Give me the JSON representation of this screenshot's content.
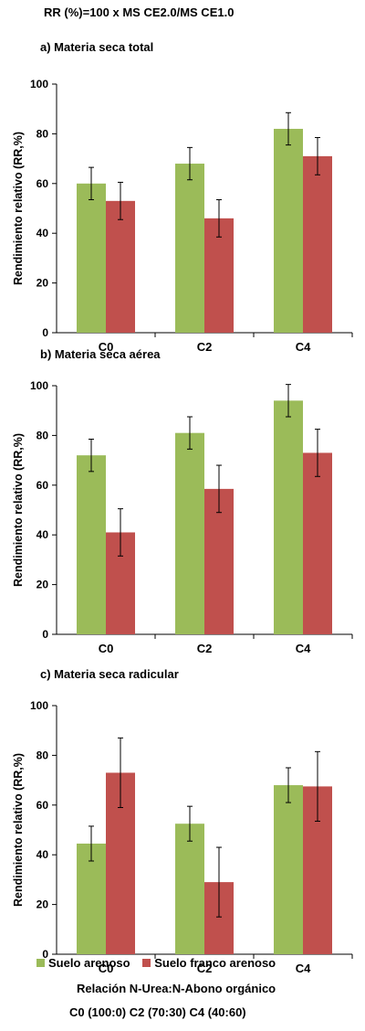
{
  "formula": "RR (%)=100 x MS CE2.0/MS CE1.0",
  "colors": {
    "series1": "#9BBB59",
    "series2": "#C0504D"
  },
  "legend": [
    {
      "label": "Suelo arenoso",
      "color": "#9BBB59"
    },
    {
      "label": "Suelo franco arenoso",
      "color": "#C0504D"
    }
  ],
  "note_line1": "Relación N-Urea:N-Abono orgánico",
  "note_line2": "C0 (100:0) C2 (70:30) C4 (40:60)",
  "chart_data": [
    {
      "type": "bar",
      "title": "a) Materia seca total",
      "ylabel": "Rendimiento relativo (RR,%)",
      "ylim": [
        0,
        100
      ],
      "yticks": [
        0,
        20,
        40,
        60,
        80,
        100
      ],
      "categories": [
        "C0",
        "C2",
        "C4"
      ],
      "series": [
        {
          "name": "Suelo arenoso",
          "values": [
            60,
            68,
            82
          ],
          "errors": [
            6.5,
            6.5,
            6.5
          ]
        },
        {
          "name": "Suelo franco arenoso",
          "values": [
            53,
            46,
            71
          ],
          "errors": [
            7.5,
            7.5,
            7.5
          ]
        }
      ]
    },
    {
      "type": "bar",
      "title": "b) Materia seca aérea",
      "ylabel": "Rendimiento relativo (RR,%)",
      "ylim": [
        0,
        100
      ],
      "yticks": [
        0,
        20,
        40,
        60,
        80,
        100
      ],
      "categories": [
        "C0",
        "C2",
        "C4"
      ],
      "series": [
        {
          "name": "Suelo arenoso",
          "values": [
            72,
            81,
            94
          ],
          "errors": [
            6.5,
            6.5,
            6.5
          ]
        },
        {
          "name": "Suelo franco arenoso",
          "values": [
            41,
            58.5,
            73
          ],
          "errors": [
            9.5,
            9.5,
            9.5
          ]
        }
      ]
    },
    {
      "type": "bar",
      "title": "c) Materia seca radicular",
      "ylabel": "Rendimiento relativo (RR,%)",
      "ylim": [
        0,
        100
      ],
      "yticks": [
        0,
        20,
        40,
        60,
        80,
        100
      ],
      "categories": [
        "C0",
        "C2",
        "C4"
      ],
      "series": [
        {
          "name": "Suelo arenoso",
          "values": [
            44.5,
            52.5,
            68
          ],
          "errors": [
            7,
            7,
            7
          ]
        },
        {
          "name": "Suelo franco arenoso",
          "values": [
            73,
            29,
            67.5
          ],
          "errors": [
            14,
            14,
            14
          ]
        }
      ]
    }
  ]
}
